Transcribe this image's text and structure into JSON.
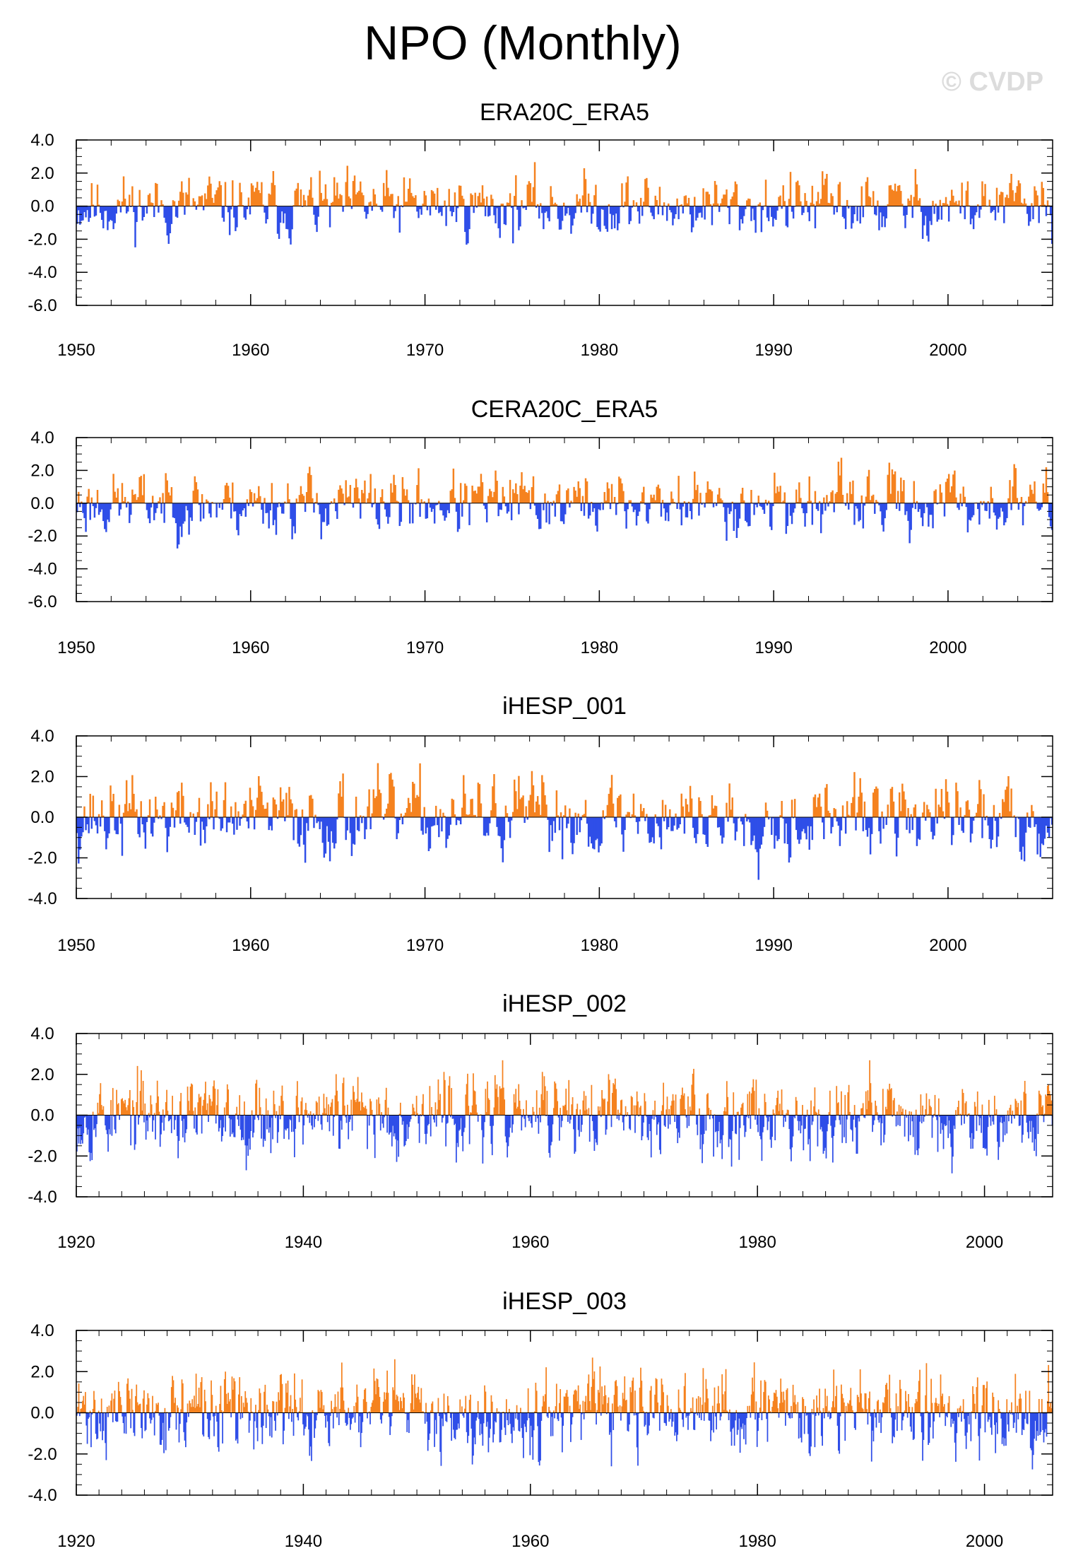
{
  "figure": {
    "title": "NPO (Monthly)",
    "copyright": "© CVDP"
  },
  "colors": {
    "positive": "#f5821f",
    "negative": "#2f4ee8",
    "axis": "#000000",
    "background": "#ffffff"
  },
  "chart_data": [
    {
      "type": "bar",
      "title": "ERA20C_ERA5",
      "xlim": [
        1950,
        2006
      ],
      "ylim": [
        -6.0,
        4.0
      ],
      "xticks": [
        "1950",
        "1960",
        "1970",
        "1980",
        "1990",
        "2000"
      ],
      "xtick_values": [
        1950,
        1960,
        1970,
        1980,
        1990,
        2000
      ],
      "yticks": [
        "4.0",
        "2.0",
        "0.0",
        "-2.0",
        "-4.0",
        "-6.0"
      ],
      "ytick_values": [
        4,
        2,
        0,
        -2,
        -4,
        -6
      ],
      "series": [
        {
          "x_start": 1950,
          "x_end": 2006,
          "n": 672,
          "seed": 11,
          "min": -3.9,
          "max": 3.0
        }
      ]
    },
    {
      "type": "bar",
      "title": "CERA20C_ERA5",
      "xlim": [
        1950,
        2006
      ],
      "ylim": [
        -6.0,
        4.0
      ],
      "xticks": [
        "1950",
        "1960",
        "1970",
        "1980",
        "1990",
        "2000"
      ],
      "xtick_values": [
        1950,
        1960,
        1970,
        1980,
        1990,
        2000
      ],
      "yticks": [
        "4.0",
        "2.0",
        "0.0",
        "-2.0",
        "-4.0",
        "-6.0"
      ],
      "ytick_values": [
        4,
        2,
        0,
        -2,
        -4,
        -6
      ],
      "series": [
        {
          "x_start": 1950,
          "x_end": 2006,
          "n": 672,
          "seed": 23,
          "min": -4.1,
          "max": 2.8
        }
      ]
    },
    {
      "type": "bar",
      "title": "iHESP_001",
      "xlim": [
        1950,
        2006
      ],
      "ylim": [
        -4.0,
        4.0
      ],
      "xticks": [
        "1950",
        "1960",
        "1970",
        "1980",
        "1990",
        "2000"
      ],
      "xtick_values": [
        1950,
        1960,
        1970,
        1980,
        1990,
        2000
      ],
      "yticks": [
        "4.0",
        "2.0",
        "0.0",
        "-2.0",
        "-4.0"
      ],
      "ytick_values": [
        4,
        2,
        0,
        -2,
        -4
      ],
      "series": [
        {
          "x_start": 1950,
          "x_end": 2006,
          "n": 672,
          "seed": 37,
          "min": -3.8,
          "max": 3.7
        }
      ]
    },
    {
      "type": "bar",
      "title": "iHESP_002",
      "xlim": [
        1920,
        2006
      ],
      "ylim": [
        -4.0,
        4.0
      ],
      "xticks": [
        "1920",
        "1940",
        "1960",
        "1980",
        "2000"
      ],
      "xtick_values": [
        1920,
        1940,
        1960,
        1980,
        2000
      ],
      "yticks": [
        "4.0",
        "2.0",
        "0.0",
        "-2.0",
        "-4.0"
      ],
      "ytick_values": [
        4,
        2,
        0,
        -2,
        -4
      ],
      "series": [
        {
          "x_start": 1920,
          "x_end": 2006,
          "n": 1032,
          "seed": 53,
          "min": -3.5,
          "max": 3.3
        }
      ]
    },
    {
      "type": "bar",
      "title": "iHESP_003",
      "xlim": [
        1920,
        2006
      ],
      "ylim": [
        -4.0,
        4.0
      ],
      "xticks": [
        "1920",
        "1940",
        "1960",
        "1980",
        "2000"
      ],
      "xtick_values": [
        1920,
        1940,
        1960,
        1980,
        2000
      ],
      "yticks": [
        "4.0",
        "2.0",
        "0.0",
        "-2.0",
        "-4.0"
      ],
      "ytick_values": [
        4,
        2,
        0,
        -2,
        -4
      ],
      "series": [
        {
          "x_start": 1920,
          "x_end": 2006,
          "n": 1032,
          "seed": 71,
          "min": -3.8,
          "max": 3.5
        }
      ]
    }
  ]
}
